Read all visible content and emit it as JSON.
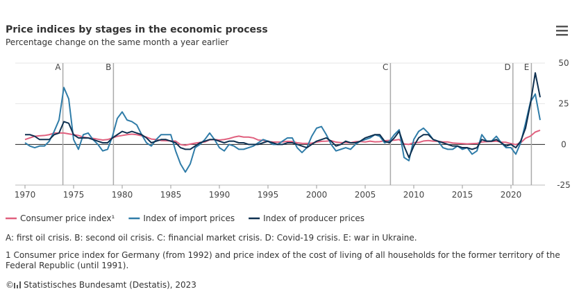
{
  "chart_data": {
    "type": "line",
    "title": "Price indices by stages in the economic process",
    "subtitle": "Percentage change on the same month a year earlier",
    "xlim": [
      1969,
      2023.5
    ],
    "xticks": [
      1970,
      1975,
      1980,
      1985,
      1990,
      1995,
      2000,
      2005,
      2010,
      2015,
      2020
    ],
    "ylim": [
      -25,
      50
    ],
    "yticks": [
      -25,
      0,
      25,
      50
    ],
    "grid": true,
    "x": [
      1970,
      1970.5,
      1971,
      1971.5,
      1972,
      1972.5,
      1973,
      1973.5,
      1974,
      1974.5,
      1975,
      1975.5,
      1976,
      1976.5,
      1977,
      1977.5,
      1978,
      1978.5,
      1979,
      1979.5,
      1980,
      1980.5,
      1981,
      1981.5,
      1982,
      1982.5,
      1983,
      1983.5,
      1984,
      1984.5,
      1985,
      1985.5,
      1986,
      1986.5,
      1987,
      1987.5,
      1988,
      1988.5,
      1989,
      1989.5,
      1990,
      1990.5,
      1991,
      1991.5,
      1992,
      1992.5,
      1993,
      1993.5,
      1994,
      1994.5,
      1995,
      1995.5,
      1996,
      1996.5,
      1997,
      1997.5,
      1998,
      1998.5,
      1999,
      1999.5,
      2000,
      2000.5,
      2001,
      2001.5,
      2002,
      2002.5,
      2003,
      2003.5,
      2004,
      2004.5,
      2005,
      2005.5,
      2006,
      2006.5,
      2007,
      2007.5,
      2008,
      2008.5,
      2009,
      2009.5,
      2010,
      2010.5,
      2011,
      2011.5,
      2012,
      2012.5,
      2013,
      2013.5,
      2014,
      2014.5,
      2015,
      2015.5,
      2016,
      2016.5,
      2017,
      2017.5,
      2018,
      2018.5,
      2019,
      2019.5,
      2020,
      2020.5,
      2021,
      2021.5,
      2022,
      2022.5,
      2023
    ],
    "series": [
      {
        "name": "Consumer price index¹",
        "color": "#e0607e",
        "values": [
          3,
          4,
          5,
          5.3,
          5.5,
          6,
          7,
          7,
          7,
          6.5,
          6,
          5.5,
          4.5,
          4,
          3.7,
          3.2,
          2.7,
          3,
          4,
          5,
          5.5,
          6,
          6.3,
          6,
          5.3,
          4.5,
          3.3,
          3,
          2.4,
          2.3,
          2.2,
          2,
          -0.1,
          -0.5,
          0.2,
          0.8,
          1.2,
          1.5,
          2.8,
          3,
          2.7,
          3,
          3.6,
          4.5,
          5.1,
          4.5,
          4.5,
          4,
          2.7,
          2.5,
          1.7,
          1.5,
          1.4,
          1.5,
          1.9,
          1.8,
          1,
          0.7,
          0.6,
          0.8,
          1.4,
          1.9,
          2,
          2.3,
          1.4,
          1.1,
          1.1,
          1,
          1.7,
          1.8,
          1.5,
          2,
          1.6,
          1.7,
          2.3,
          2.5,
          2.6,
          3,
          0.3,
          0,
          1.1,
          1.2,
          2.1,
          2.4,
          2,
          1.9,
          1.5,
          1.5,
          0.9,
          0.7,
          0.5,
          0.3,
          0.5,
          0.6,
          1.5,
          1.7,
          1.8,
          2,
          1.4,
          1.3,
          0.5,
          -0.1,
          1,
          3.8,
          5.1,
          7.6,
          8.7
        ]
      },
      {
        "name": "Index of import prices",
        "color": "#2f7ca8",
        "values": [
          1,
          -1,
          -2,
          -1,
          -1,
          2,
          8,
          15,
          35,
          28,
          3,
          -3,
          6,
          7,
          3,
          0,
          -4,
          -3,
          5,
          16,
          20,
          15,
          14,
          12,
          6,
          1,
          -1,
          3,
          6,
          6,
          6,
          -4,
          -12,
          -17,
          -12,
          -2,
          0,
          3,
          7,
          3,
          -2,
          -4,
          0,
          -1,
          -3,
          -3,
          -2,
          -1,
          1,
          3,
          2,
          0,
          0,
          2,
          4,
          4,
          -2,
          -5,
          -2,
          5,
          10,
          11,
          6,
          0,
          -4,
          -3,
          -2,
          -3,
          0,
          2,
          3,
          4,
          6,
          5,
          1,
          2,
          6,
          9,
          -8,
          -10,
          3,
          8,
          10,
          7,
          3,
          2,
          -2,
          -3,
          -3,
          -1,
          -3,
          -2,
          -6,
          -4,
          6,
          2,
          2,
          5,
          1,
          -2,
          -2,
          -6,
          1,
          13,
          26,
          31,
          15
        ]
      },
      {
        "name": "Index of producer prices",
        "color": "#0e3050",
        "values": [
          6,
          6,
          5,
          3,
          3,
          3,
          6,
          7,
          14,
          13,
          6,
          4,
          4,
          4,
          3,
          2,
          1,
          1,
          4,
          6,
          8,
          7,
          8,
          7,
          6,
          4,
          1,
          2,
          3,
          3,
          2,
          1,
          -2,
          -3,
          -3,
          -1,
          1,
          2,
          3,
          3,
          2,
          1,
          2,
          2,
          1,
          1,
          0,
          0,
          0,
          1,
          2,
          1,
          0,
          0,
          1,
          1,
          0,
          -1,
          -2,
          0,
          2,
          3,
          4,
          2,
          -1,
          0,
          2,
          1,
          1,
          2,
          4,
          5,
          6,
          6,
          2,
          1,
          4,
          8,
          -1,
          -8,
          -1,
          4,
          6,
          6,
          3,
          2,
          1,
          0,
          -1,
          -1,
          -2,
          -2,
          -3,
          -2,
          3,
          2,
          2,
          3,
          1,
          -1,
          0,
          -2,
          2,
          10,
          25,
          44,
          29
        ]
      }
    ],
    "events": [
      {
        "label": "A",
        "x": 1973.9
      },
      {
        "label": "B",
        "x": 1979.1
      },
      {
        "label": "C",
        "x": 2007.6
      },
      {
        "label": "D",
        "x": 2020.2
      },
      {
        "label": "E",
        "x": 2022.1
      }
    ],
    "note": "A: first oil crisis. B: second oil crisis. C: financial market crisis. D: Covid-19 crisis. E: war in Ukraine.",
    "footnote": "1 Consumer price index for Germany (from 1992) and price index of the cost of living of all households for the former territory of the Federal Republic (until 1991).",
    "source": "Statistisches Bundesamt (Destatis), 2023"
  }
}
